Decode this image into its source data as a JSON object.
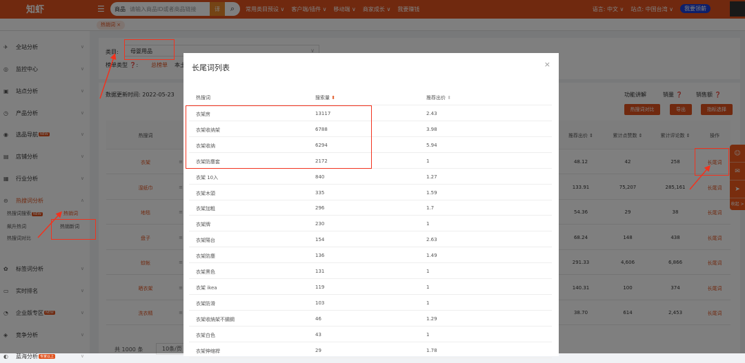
{
  "header": {
    "logo": "知虾",
    "search_type": "商品",
    "search_placeholder": "请输入商品ID或者商品链接",
    "translate_icon": "译",
    "nav": [
      "常用类目预设 ∨",
      "客户端/插件 ∨",
      "移动端 ∨",
      "商家成长 ∨",
      "我要赚钱"
    ],
    "language": "语言: 中文 ∨",
    "site": "站点: 中国台湾 ∨",
    "vip_button": "我要领薪"
  },
  "tab": {
    "label": "热销词 ×"
  },
  "sidebar": {
    "items": [
      {
        "label": "全站分析",
        "icon": "✈"
      },
      {
        "label": "监控中心",
        "icon": "◎"
      },
      {
        "label": "站点分析",
        "icon": "▣"
      },
      {
        "label": "产品分析",
        "icon": "◷"
      },
      {
        "label": "选品导航",
        "icon": "◉",
        "badge": "NEW"
      },
      {
        "label": "店铺分析",
        "icon": "▤"
      },
      {
        "label": "行业分析",
        "icon": "▦"
      },
      {
        "label": "热搜词分析",
        "icon": "⊝",
        "expanded": true
      },
      {
        "label": "标签词分析",
        "icon": "✿"
      },
      {
        "label": "实时排名",
        "icon": "▭"
      },
      {
        "label": "企业版专区",
        "icon": "◔",
        "badge": "NEW"
      },
      {
        "label": "竞争分析",
        "icon": "◈"
      },
      {
        "label": "蓝海分析",
        "icon": "◐",
        "badge": "专家以上"
      }
    ],
    "sub_items": [
      {
        "label": "热搜词搜索",
        "badge": "NEW"
      },
      {
        "label": "热销词",
        "active": true
      },
      {
        "label": "飙升热词"
      },
      {
        "label": "热销新词"
      },
      {
        "label": "热搜词对比"
      }
    ]
  },
  "filter": {
    "category_label": "类目:",
    "category_value": "母婴用品",
    "rank_type_label": "榜单类型 ❓:",
    "rank_type_active": "总榜单",
    "rank_type_other": "本土榜"
  },
  "panel": {
    "update_time": "数据更新时间: 2022-05-23",
    "links": [
      "功能讲解",
      "销量 ❓",
      "销售额 ❓"
    ],
    "buttons": [
      "热搜词对比",
      "导出",
      "指标选择"
    ],
    "columns": [
      "热搜词",
      "推荐出价 ⇕",
      "累计点赞数 ⇕",
      "累计评论数 ⇕",
      "操作"
    ],
    "rows": [
      [
        "衣架",
        "48.12",
        "42",
        "258",
        "长尾词"
      ],
      [
        "湿纸巾",
        "133.91",
        "75,207",
        "285,161",
        "长尾词"
      ],
      [
        "地毯",
        "54.36",
        "29",
        "38",
        "长尾词"
      ],
      [
        "盘子",
        "68.24",
        "148",
        "438",
        "长尾词"
      ],
      [
        "蚊帐",
        "291.33",
        "4,606",
        "6,866",
        "长尾词"
      ],
      [
        "晒衣架",
        "140.31",
        "100",
        "374",
        "长尾词"
      ],
      [
        "洗衣精",
        "38.70",
        "614",
        "2,453",
        "长尾词"
      ]
    ],
    "total": "共 1000 条",
    "page_size": "10条/页 ∨"
  },
  "float_widget": {
    "collapse": "收起 >"
  },
  "modal": {
    "title": "长尾词列表",
    "close": "×",
    "columns": [
      "热搜词",
      "搜索量",
      "推荐出价"
    ],
    "rows": [
      [
        "衣架房",
        "13117",
        "2.43"
      ],
      [
        "衣架收纳架",
        "6788",
        "3.98"
      ],
      [
        "衣架收纳",
        "6294",
        "5.94"
      ],
      [
        "衣架防塵套",
        "2172",
        "1"
      ],
      [
        "衣架 10入",
        "840",
        "1.27"
      ],
      [
        "衣架木頭",
        "335",
        "1.59"
      ],
      [
        "衣架加粗",
        "296",
        "1.7"
      ],
      [
        "衣架牌",
        "230",
        "1"
      ],
      [
        "衣架陽台",
        "154",
        "2.63"
      ],
      [
        "衣架防塵",
        "136",
        "1.49"
      ],
      [
        "衣架黑色",
        "131",
        "1"
      ],
      [
        "衣架 ikea",
        "119",
        "1"
      ],
      [
        "衣架防滑",
        "103",
        "1"
      ],
      [
        "衣架收納架不鏽鋼",
        "46",
        "1.29"
      ],
      [
        "衣架白色",
        "43",
        "1"
      ],
      [
        "衣架伸缩桿",
        "29",
        "1.78"
      ]
    ]
  },
  "colors": {
    "brand": "#e0531f",
    "annotation": "#f2321d",
    "vip": "#1d3fd6"
  }
}
